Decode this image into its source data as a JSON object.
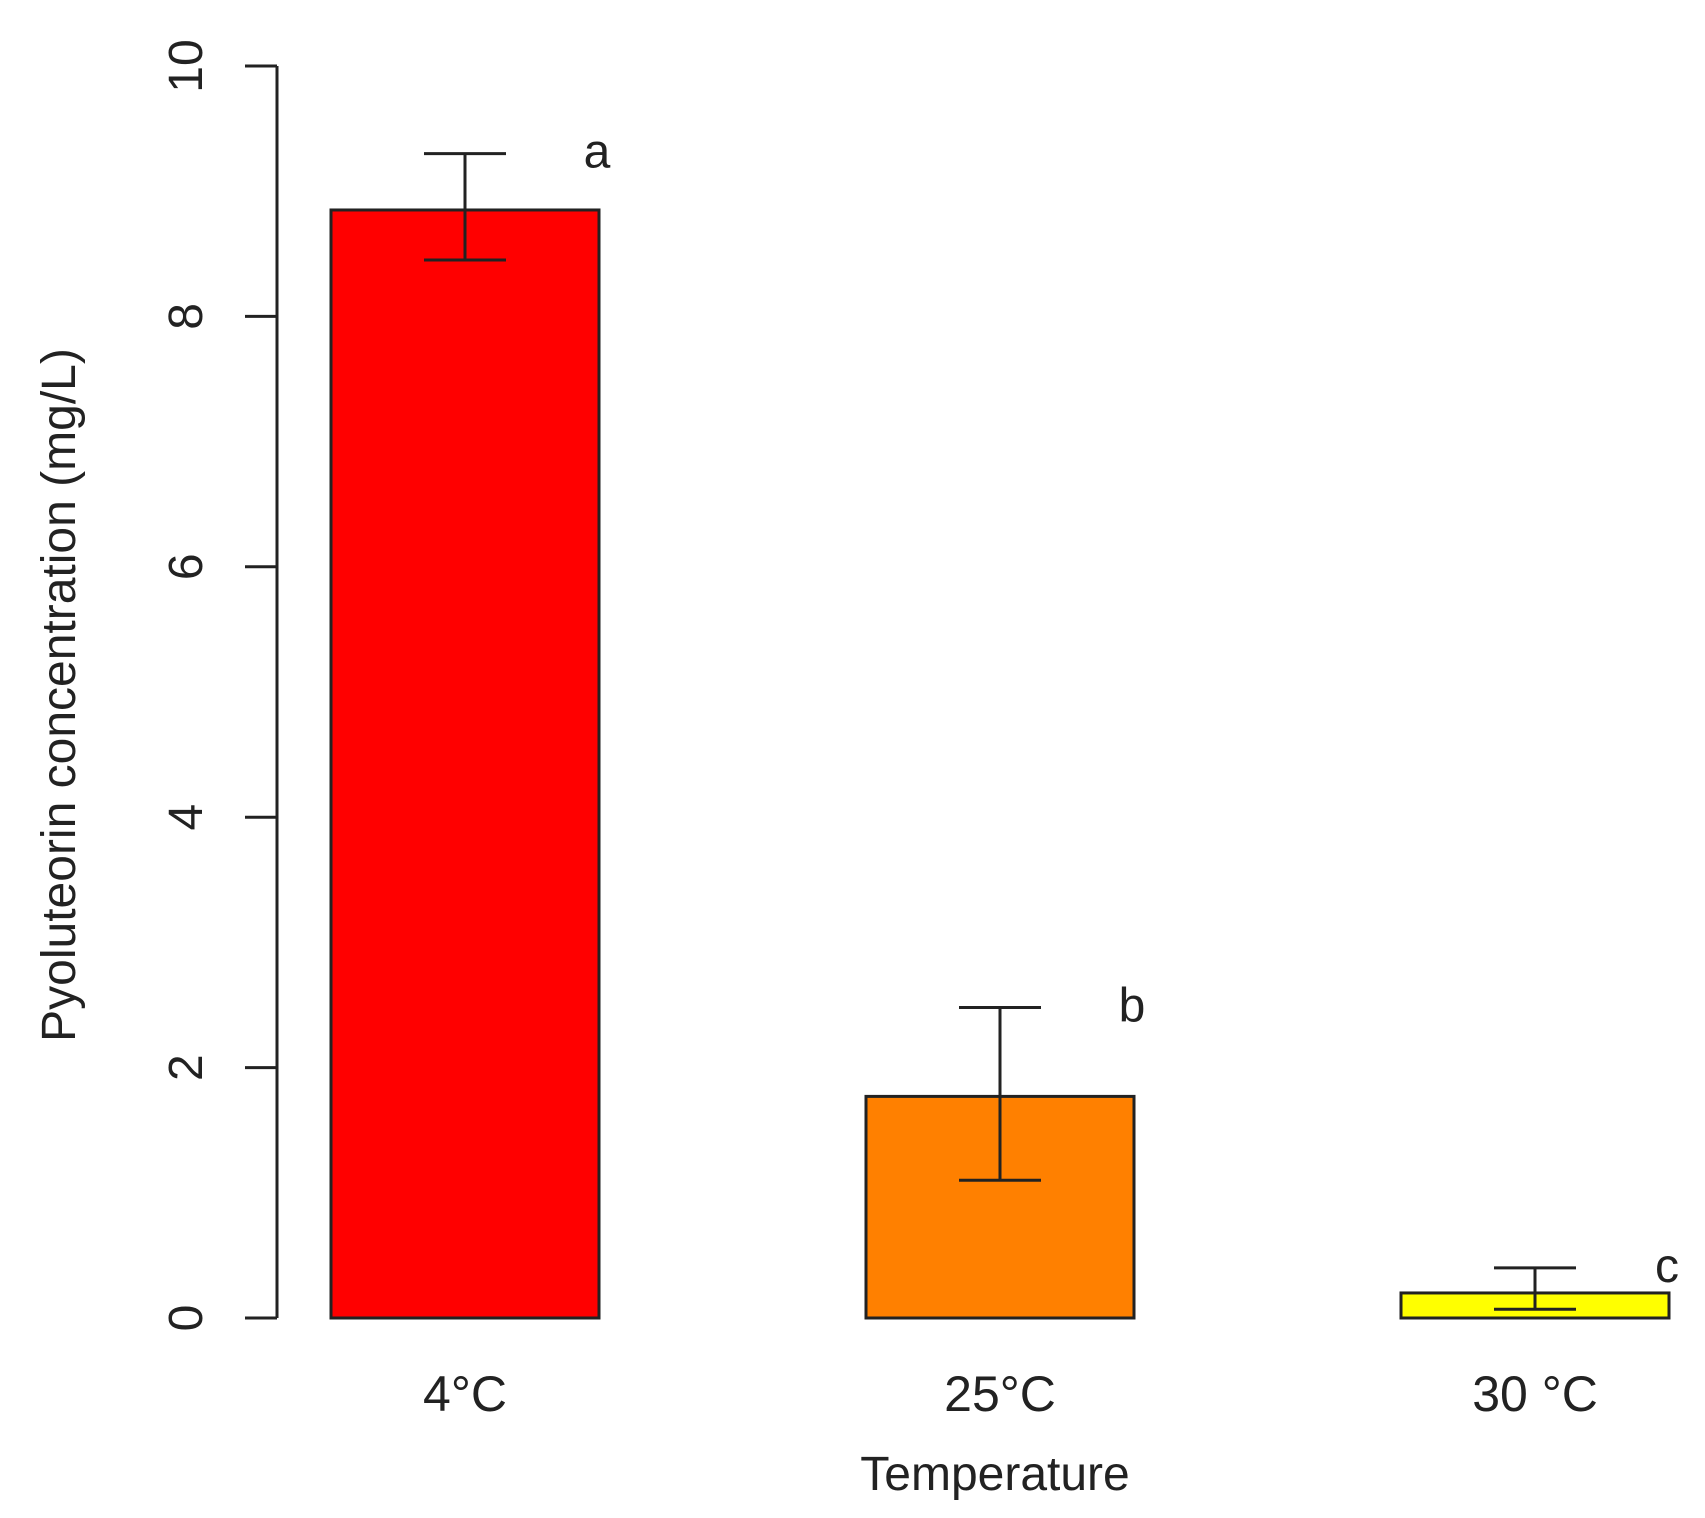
{
  "chart_data": {
    "type": "bar",
    "categories": [
      "4°C",
      "25°C",
      "30 °C"
    ],
    "values": [
      8.85,
      1.77,
      0.2
    ],
    "error_low": [
      8.45,
      1.1,
      0.07
    ],
    "error_high": [
      9.3,
      2.48,
      0.4
    ],
    "significance_letters": [
      "a",
      "b",
      "c"
    ],
    "colors": [
      "#ff0000",
      "#ff8000",
      "#ffff00"
    ],
    "xlabel": "Temperature",
    "ylabel": "Pyoluteorin concentration (mg/L)",
    "ylim": [
      0,
      10
    ],
    "yticks": [
      "0",
      "2",
      "4",
      "6",
      "8",
      "10"
    ],
    "grid": false,
    "legend": "none"
  }
}
